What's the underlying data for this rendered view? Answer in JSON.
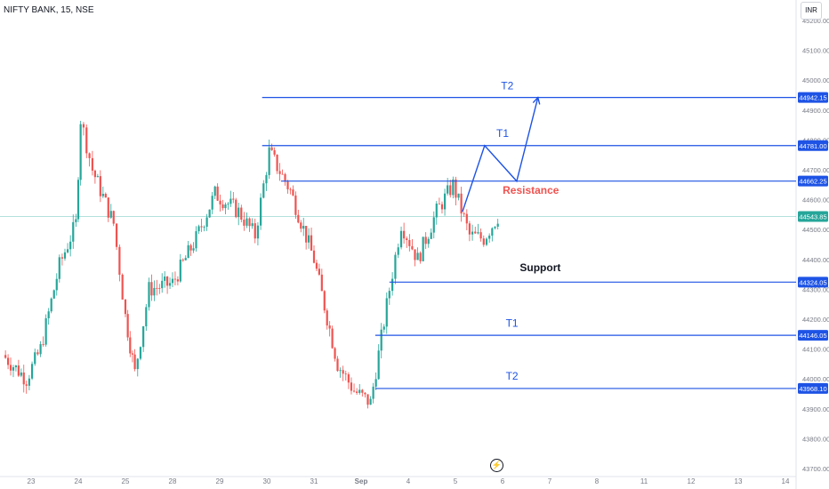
{
  "header": {
    "title": "NIFTY BANK, 15, NSE",
    "currency": "INR"
  },
  "toolbar": {
    "bolt_icon": "bolt-icon"
  },
  "colors": {
    "up": "#26a69a",
    "down": "#ef5350",
    "level_line": "#1e53e5",
    "resistance_text": "#ef5350",
    "support_text": "#131722",
    "target_text": "#1e53e5",
    "last_price": "#26a69a"
  },
  "chart_data": {
    "type": "candlestick",
    "symbol": "NIFTY BANK",
    "timeframe": "15",
    "ylim": [
      43700,
      45250
    ],
    "y_ticks": [
      43700,
      43800,
      43900,
      44000,
      44100,
      44200,
      44300,
      44400,
      44500,
      44600,
      44700,
      44800,
      44900,
      45000,
      45100,
      45200
    ],
    "y_tick_labels": [
      "43700.00",
      "43800.00",
      "43900.00",
      "44000.00",
      "44100.00",
      "44200.00",
      "44300.00",
      "44400.00",
      "44500.00",
      "44600.00",
      "44700.00",
      "44800.00",
      "44900.00",
      "45000.00",
      "45100.00",
      "45200.00"
    ],
    "x_labels": [
      "23",
      "24",
      "25",
      "28",
      "29",
      "30",
      "31",
      "Sep",
      "4",
      "5",
      "6",
      "7",
      "8",
      "11",
      "12",
      "13",
      "14"
    ],
    "last_price": 44543.85,
    "last_price_label": "44543.85",
    "levels": [
      {
        "value": 44942.15,
        "label": "44942.15",
        "from_day": 4.9
      },
      {
        "value": 44781.0,
        "label": "44781.00",
        "from_day": 4.9
      },
      {
        "value": 44662.25,
        "label": "44662.25",
        "from_day": 5.3
      },
      {
        "value": 44324.05,
        "label": "44324.05",
        "from_day": 7.6
      },
      {
        "value": 44146.05,
        "label": "44146.05",
        "from_day": 7.3
      },
      {
        "value": 43968.1,
        "label": "43968.10",
        "from_day": 7.3
      }
    ],
    "annotations": [
      {
        "text": "T2",
        "day": 10.1,
        "price": 44970,
        "color_key": "target_text"
      },
      {
        "text": "T1",
        "day": 10.0,
        "price": 44810,
        "color_key": "target_text"
      },
      {
        "text": "Resistance",
        "day": 10.6,
        "price": 44620,
        "color_key": "resistance_text"
      },
      {
        "text": "Support",
        "day": 10.8,
        "price": 44360,
        "color_key": "support_text"
      },
      {
        "text": "T1",
        "day": 10.2,
        "price": 44175,
        "color_key": "target_text"
      },
      {
        "text": "T2",
        "day": 10.2,
        "price": 43997,
        "color_key": "target_text"
      }
    ],
    "projection_path": [
      {
        "day": 9.15,
        "price": 44560
      },
      {
        "day": 9.62,
        "price": 44781
      },
      {
        "day": 10.3,
        "price": 44662
      },
      {
        "day": 10.75,
        "price": 44942
      }
    ],
    "price_path": [
      {
        "day": -0.6,
        "price": 44080
      },
      {
        "day": -0.1,
        "price": 44000
      },
      {
        "day": 0.2,
        "price": 44100
      },
      {
        "day": 0.6,
        "price": 44380
      },
      {
        "day": 0.95,
        "price": 44520
      },
      {
        "day": 1.05,
        "price": 44870
      },
      {
        "day": 1.3,
        "price": 44700
      },
      {
        "day": 1.75,
        "price": 44520
      },
      {
        "day": 2.0,
        "price": 44210
      },
      {
        "day": 2.2,
        "price": 44020
      },
      {
        "day": 2.5,
        "price": 44300
      },
      {
        "day": 3.0,
        "price": 44320
      },
      {
        "day": 3.5,
        "price": 44470
      },
      {
        "day": 3.9,
        "price": 44620
      },
      {
        "day": 4.4,
        "price": 44560
      },
      {
        "day": 4.75,
        "price": 44480
      },
      {
        "day": 5.05,
        "price": 44760
      },
      {
        "day": 5.5,
        "price": 44630
      },
      {
        "day": 6.0,
        "price": 44400
      },
      {
        "day": 6.5,
        "price": 44050
      },
      {
        "day": 6.85,
        "price": 43960
      },
      {
        "day": 7.2,
        "price": 43920
      },
      {
        "day": 7.6,
        "price": 44300
      },
      {
        "day": 7.85,
        "price": 44520
      },
      {
        "day": 8.2,
        "price": 44400
      },
      {
        "day": 8.6,
        "price": 44560
      },
      {
        "day": 8.95,
        "price": 44650
      },
      {
        "day": 9.3,
        "price": 44480
      },
      {
        "day": 9.6,
        "price": 44470
      },
      {
        "day": 9.9,
        "price": 44543.85
      }
    ]
  }
}
